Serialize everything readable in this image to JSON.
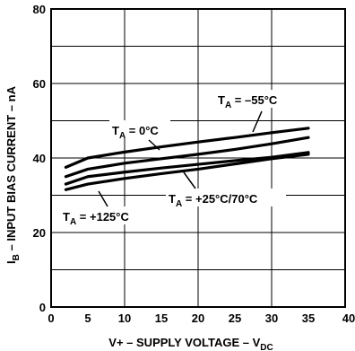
{
  "chart_data": {
    "type": "line",
    "title": "",
    "xlabel": {
      "main": "V+ – SUPPLY VOLTAGE – V",
      "sub": "DC"
    },
    "ylabel": {
      "pre": "I",
      "sub": "B",
      "post": " – INPUT BIAS CURRENT – nA"
    },
    "xlim": [
      0,
      40
    ],
    "ylim": [
      0,
      80
    ],
    "xticks": [
      "0",
      "5",
      "10",
      "15",
      "20",
      "25",
      "30",
      "35",
      "40"
    ],
    "yticks": [
      "0",
      "20",
      "40",
      "60",
      "80"
    ],
    "grid": true,
    "series": [
      {
        "name": "T_A = −55°C",
        "x": [
          2,
          5,
          10,
          15,
          20,
          25,
          30,
          35
        ],
        "y": [
          37.5,
          40.0,
          41.6,
          43.0,
          44.3,
          45.5,
          46.8,
          48.0
        ]
      },
      {
        "name": "T_A = 0°C",
        "x": [
          2,
          5,
          10,
          15,
          20,
          25,
          30,
          35
        ],
        "y": [
          35.0,
          37.0,
          38.6,
          39.8,
          41.0,
          42.3,
          43.8,
          45.5
        ]
      },
      {
        "name": "T_A = +25°C/70°C",
        "x": [
          2,
          5,
          10,
          15,
          20,
          25,
          30,
          35
        ],
        "y": [
          33.0,
          35.0,
          36.2,
          37.3,
          38.3,
          39.3,
          40.2,
          41.5
        ]
      },
      {
        "name": "T_A = +125°C",
        "x": [
          2,
          5,
          10,
          15,
          20,
          25,
          30,
          35
        ],
        "y": [
          31.5,
          33.0,
          34.5,
          35.8,
          37.0,
          38.4,
          39.8,
          41.0
        ]
      }
    ],
    "annotations": [
      {
        "pre": "T",
        "sub": "A",
        "post": " = –55°C"
      },
      {
        "pre": "T",
        "sub": "A",
        "post": " = 0°C"
      },
      {
        "pre": "T",
        "sub": "A",
        "post": " = +25°C/70°C"
      },
      {
        "pre": "T",
        "sub": "A",
        "post": " = +125°C"
      }
    ]
  }
}
